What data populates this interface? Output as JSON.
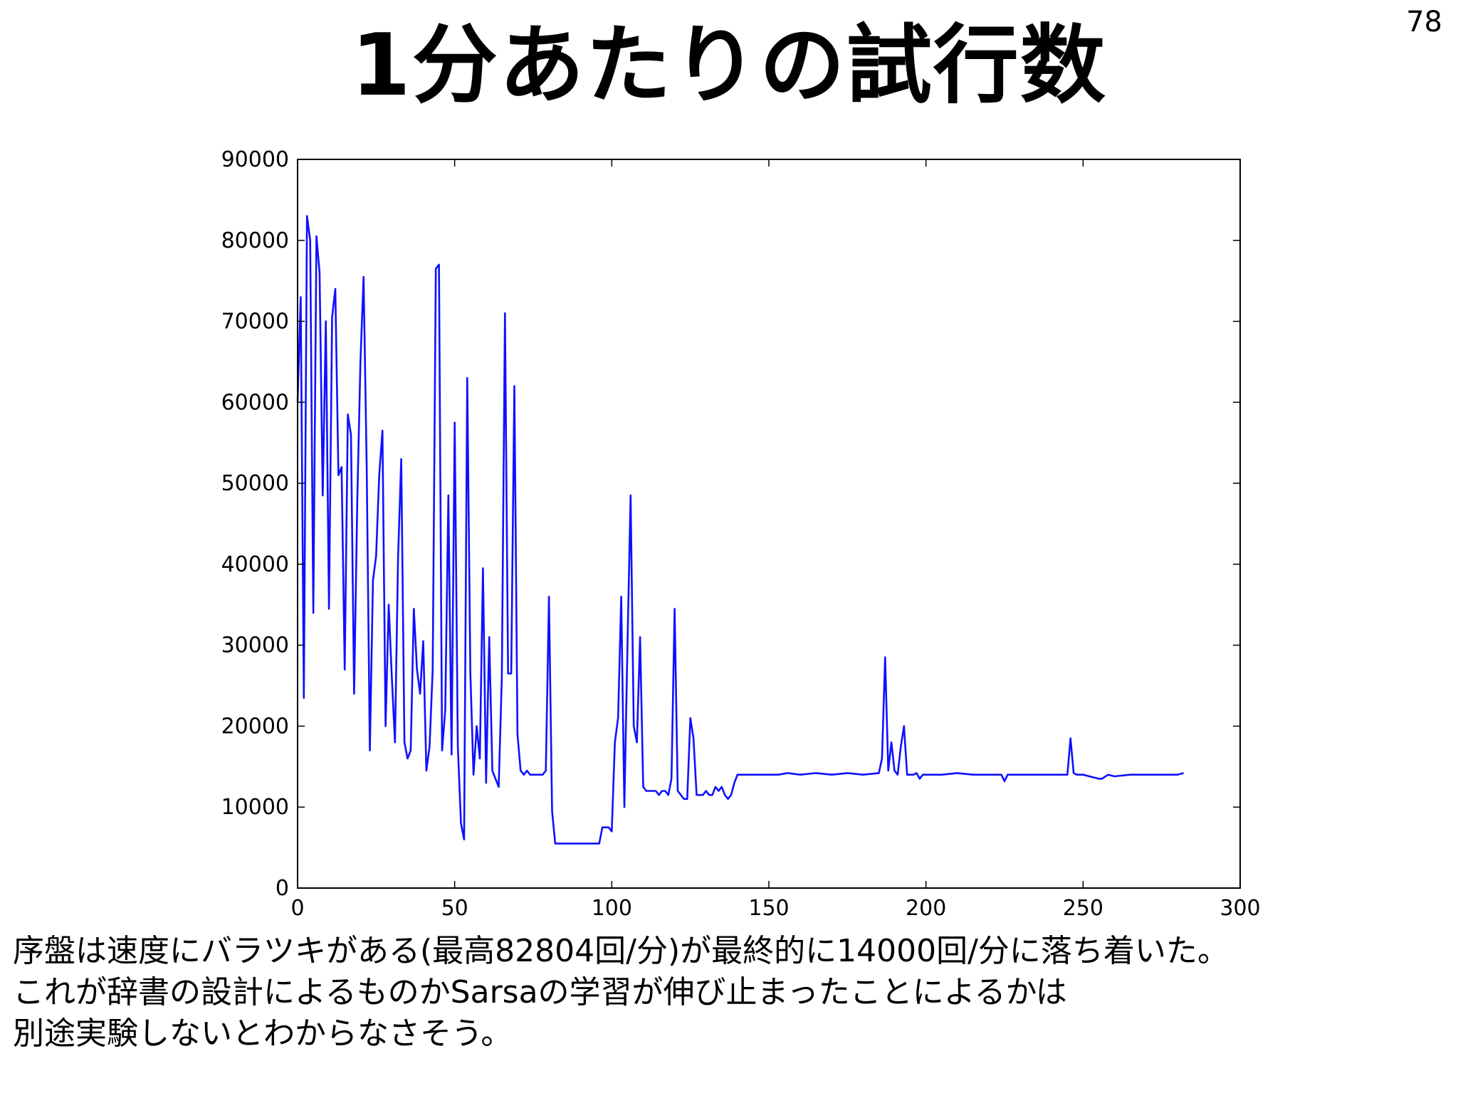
{
  "slide": {
    "title": "1分あたりの試行数",
    "page_number": "78"
  },
  "caption": {
    "line1": "序盤は速度にバラツキがある(最高82804回/分)が最終的に14000回/分に落ち着いた。",
    "line2": "これが辞書の設計によるものかSarsaの学習が伸び止まったことによるかは",
    "line3": "別途実験しないとわからなさそう。"
  },
  "chart_data": {
    "type": "line",
    "title": "",
    "xlabel": "",
    "ylabel": "",
    "xlim": [
      0,
      300
    ],
    "ylim": [
      0,
      90000
    ],
    "xticks": [
      0,
      50,
      100,
      150,
      200,
      250,
      300
    ],
    "yticks": [
      0,
      10000,
      20000,
      30000,
      40000,
      50000,
      60000,
      70000,
      80000,
      90000
    ],
    "grid": false,
    "line_color": "#1010ff",
    "series": [
      {
        "name": "",
        "x": [
          0,
          1,
          2,
          3,
          4,
          5,
          6,
          7,
          8,
          9,
          10,
          11,
          12,
          13,
          14,
          15,
          16,
          17,
          18,
          19,
          20,
          21,
          22,
          23,
          24,
          25,
          26,
          27,
          28,
          29,
          30,
          31,
          32,
          33,
          34,
          35,
          36,
          37,
          38,
          39,
          40,
          41,
          42,
          43,
          44,
          45,
          46,
          47,
          48,
          49,
          50,
          51,
          52,
          53,
          54,
          55,
          56,
          57,
          58,
          59,
          60,
          61,
          62,
          63,
          64,
          65,
          66,
          67,
          68,
          69,
          70,
          71,
          72,
          73,
          74,
          75,
          76,
          77,
          78,
          79,
          80,
          81,
          82,
          83,
          84,
          85,
          86,
          87,
          88,
          89,
          90,
          91,
          92,
          93,
          94,
          95,
          96,
          97,
          98,
          99,
          100,
          101,
          102,
          103,
          104,
          105,
          106,
          107,
          108,
          109,
          110,
          111,
          112,
          113,
          114,
          115,
          116,
          117,
          118,
          119,
          120,
          121,
          122,
          123,
          124,
          125,
          126,
          127,
          128,
          129,
          130,
          131,
          132,
          133,
          134,
          135,
          136,
          137,
          138,
          139,
          140,
          142,
          145,
          148,
          150,
          153,
          156,
          160,
          165,
          170,
          175,
          180,
          185,
          186,
          187,
          188,
          189,
          190,
          191,
          192,
          193,
          194,
          195,
          196,
          197,
          198,
          199,
          200,
          205,
          210,
          215,
          220,
          224,
          225,
          226,
          230,
          235,
          240,
          245,
          246,
          247,
          248,
          250,
          255,
          256,
          258,
          260,
          265,
          270,
          275,
          280,
          282
        ],
        "y": [
          60000,
          73000,
          23500,
          83000,
          80000,
          34000,
          80500,
          76000,
          48500,
          70000,
          34500,
          70500,
          74000,
          51000,
          52000,
          27000,
          58500,
          56000,
          24000,
          48000,
          65000,
          75500,
          52000,
          17000,
          38000,
          41000,
          51000,
          56500,
          20000,
          35000,
          26000,
          18000,
          41000,
          53000,
          18000,
          16000,
          17000,
          34500,
          27000,
          24000,
          30500,
          14500,
          17500,
          27000,
          76500,
          77000,
          17000,
          22000,
          48500,
          16500,
          57500,
          17500,
          8000,
          6000,
          63000,
          26500,
          14000,
          20000,
          16000,
          39500,
          13000,
          31000,
          14500,
          13500,
          12500,
          26000,
          71000,
          26500,
          26500,
          62000,
          19000,
          14500,
          14000,
          14500,
          14000,
          14000,
          14000,
          14000,
          14000,
          14500,
          36000,
          9500,
          5500,
          5500,
          5500,
          5500,
          5500,
          5500,
          5500,
          5500,
          5500,
          5500,
          5500,
          5500,
          5500,
          5500,
          5500,
          7500,
          7500,
          7500,
          7000,
          18000,
          21000,
          36000,
          10000,
          30000,
          48500,
          20000,
          18000,
          31000,
          12500,
          12000,
          12000,
          12000,
          12000,
          11500,
          12000,
          12000,
          11500,
          13500,
          34500,
          12000,
          11500,
          11000,
          11000,
          21000,
          18500,
          11500,
          11500,
          11500,
          12000,
          11500,
          11500,
          12500,
          12000,
          12500,
          11500,
          11000,
          11500,
          13000,
          14000,
          14000,
          14000,
          14000,
          14000,
          14000,
          14200,
          14000,
          14200,
          14000,
          14200,
          14000,
          14200,
          16000,
          28500,
          14500,
          18000,
          14500,
          14000,
          17500,
          20000,
          14000,
          14000,
          14000,
          14200,
          13500,
          14000,
          14000,
          14000,
          14200,
          14000,
          14000,
          14000,
          13200,
          14000,
          14000,
          14000,
          14000,
          14000,
          18500,
          14200,
          14000,
          14000,
          13500,
          13500,
          14000,
          13800,
          14000,
          14000,
          14000,
          14000,
          14200
        ]
      }
    ]
  }
}
